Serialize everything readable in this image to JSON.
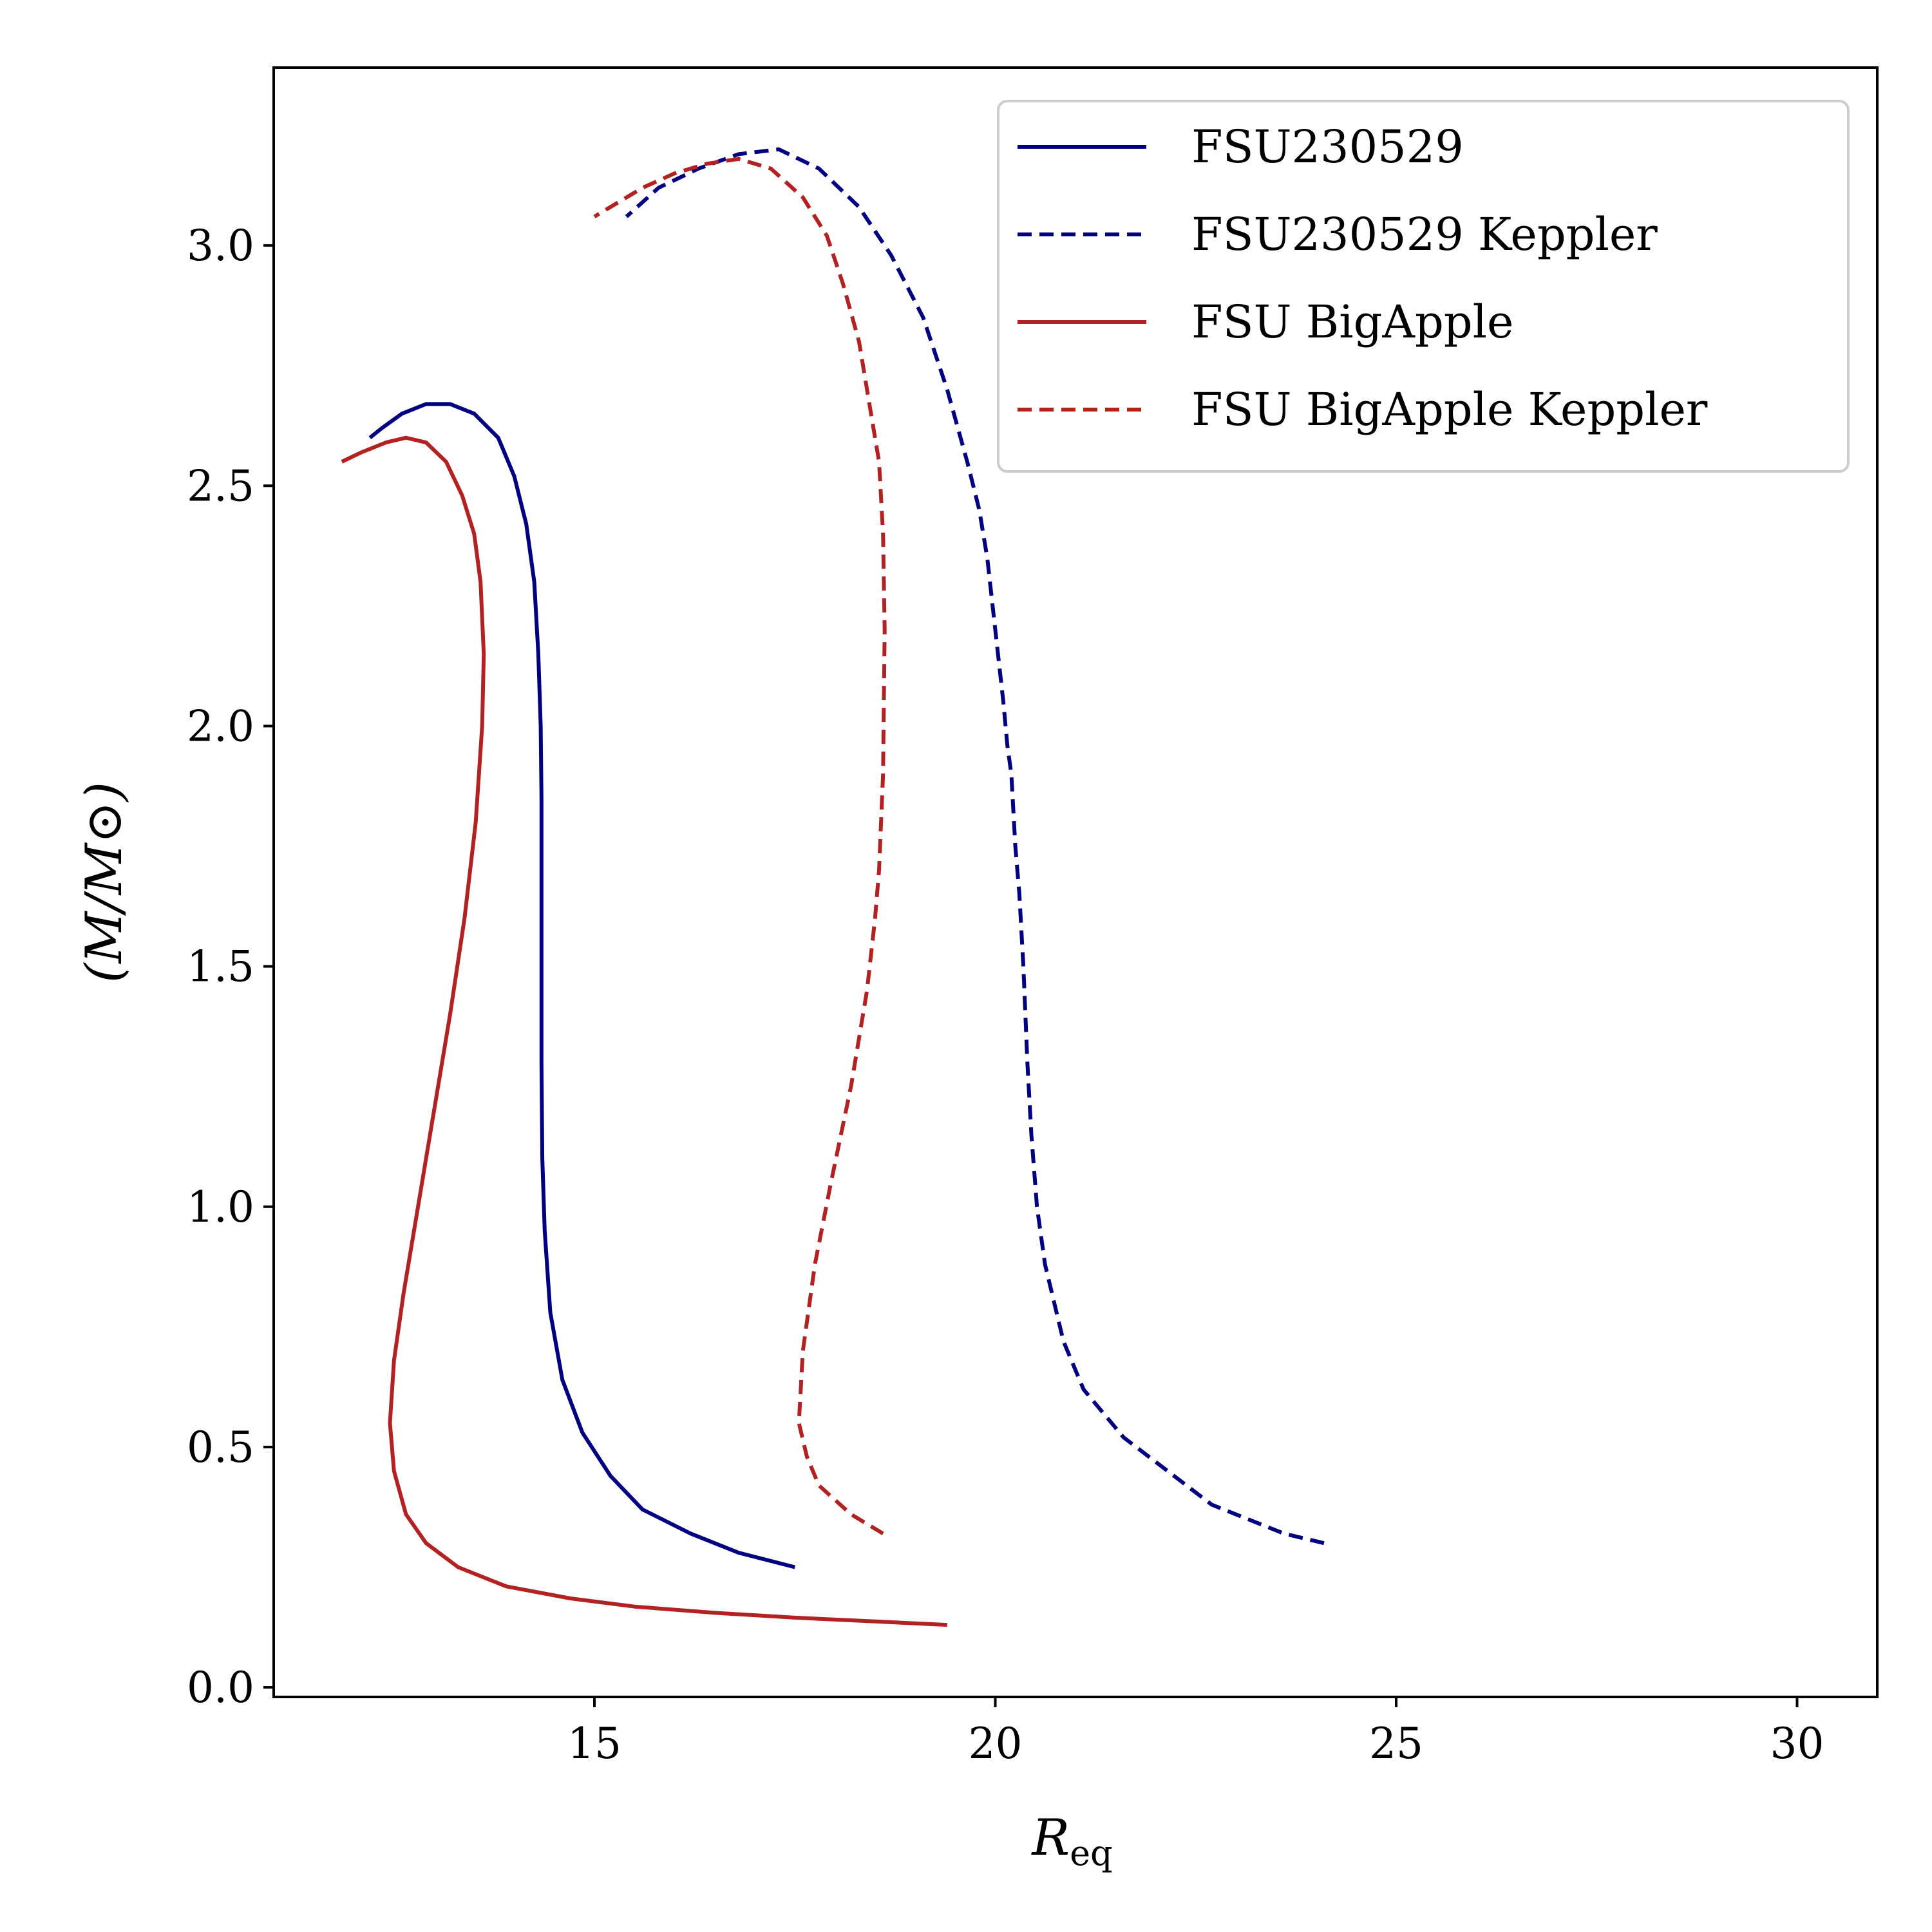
{
  "chart_data": {
    "type": "line",
    "xlabel": "R_eq",
    "xlabel_main": "R",
    "xlabel_sub": "eq",
    "ylabel": "(M/M_⊙)",
    "ylabel_text": "(M/M⊙)",
    "xlim": [
      11.0,
      31.0
    ],
    "ylim": [
      -0.02,
      3.37
    ],
    "xticks": [
      15,
      20,
      25,
      30
    ],
    "xtick_labels": [
      "15",
      "20",
      "25",
      "30"
    ],
    "yticks": [
      0.0,
      0.5,
      1.0,
      1.5,
      2.0,
      2.5,
      3.0
    ],
    "ytick_labels": [
      "0.0",
      "0.5",
      "1.0",
      "1.5",
      "2.0",
      "2.5",
      "3.0"
    ],
    "grid": false,
    "legend_position": "top-right",
    "series": [
      {
        "name": "FSU230529",
        "color": "#000080",
        "style": "solid",
        "x": [
          17.5,
          16.8,
          16.2,
          15.6,
          15.2,
          14.85,
          14.6,
          14.45,
          14.38,
          14.35,
          14.34,
          14.34,
          14.34,
          14.34,
          14.33,
          14.3,
          14.25,
          14.15,
          14.0,
          13.8,
          13.5,
          13.2,
          12.9,
          12.6,
          12.35,
          12.2
        ],
        "y": [
          0.25,
          0.28,
          0.32,
          0.37,
          0.44,
          0.53,
          0.64,
          0.78,
          0.95,
          1.1,
          1.3,
          1.5,
          1.7,
          1.85,
          2.0,
          2.15,
          2.3,
          2.42,
          2.52,
          2.6,
          2.65,
          2.67,
          2.67,
          2.65,
          2.62,
          2.6
        ]
      },
      {
        "name": "FSU230529 Keppler",
        "color": "#000080",
        "style": "dashed",
        "x": [
          24.1,
          23.6,
          22.7,
          21.6,
          21.1,
          20.85,
          20.62,
          20.52,
          20.45,
          20.4,
          20.35,
          20.3,
          20.25,
          20.2,
          20.15,
          20.1,
          20.0,
          19.9,
          19.8,
          19.65,
          19.4,
          19.1,
          18.7,
          18.3,
          17.8,
          17.3,
          16.8,
          16.3,
          15.8,
          15.4
        ],
        "y": [
          0.3,
          0.32,
          0.38,
          0.52,
          0.62,
          0.72,
          0.88,
          1.0,
          1.15,
          1.3,
          1.5,
          1.65,
          1.75,
          1.9,
          1.96,
          2.05,
          2.2,
          2.35,
          2.45,
          2.55,
          2.7,
          2.85,
          2.98,
          3.08,
          3.16,
          3.2,
          3.19,
          3.16,
          3.12,
          3.06
        ]
      },
      {
        "name": "FSU BigApple",
        "color": "#b22222",
        "style": "solid",
        "x": [
          19.4,
          18.5,
          17.5,
          16.5,
          15.5,
          14.7,
          13.9,
          13.3,
          12.9,
          12.65,
          12.5,
          12.45,
          12.5,
          12.62,
          12.8,
          13.0,
          13.2,
          13.38,
          13.52,
          13.6,
          13.62,
          13.58,
          13.5,
          13.35,
          13.15,
          12.9,
          12.65,
          12.4,
          12.1,
          11.85
        ],
        "y": [
          0.13,
          0.137,
          0.145,
          0.155,
          0.168,
          0.185,
          0.21,
          0.25,
          0.3,
          0.36,
          0.45,
          0.55,
          0.68,
          0.82,
          1.0,
          1.2,
          1.4,
          1.6,
          1.8,
          2.0,
          2.15,
          2.3,
          2.4,
          2.48,
          2.55,
          2.59,
          2.6,
          2.59,
          2.57,
          2.55
        ]
      },
      {
        "name": "FSU BigApple Keppler",
        "color": "#b22222",
        "style": "dashed",
        "x": [
          18.6,
          18.2,
          17.8,
          17.65,
          17.55,
          17.6,
          17.75,
          17.95,
          18.2,
          18.4,
          18.5,
          18.55,
          18.6,
          18.62,
          18.6,
          18.55,
          18.45,
          18.3,
          18.1,
          17.9,
          17.6,
          17.2,
          16.8,
          16.4,
          16.0,
          15.6,
          15.0
        ],
        "y": [
          0.32,
          0.36,
          0.42,
          0.48,
          0.55,
          0.7,
          0.88,
          1.05,
          1.25,
          1.45,
          1.6,
          1.7,
          1.9,
          2.2,
          2.4,
          2.55,
          2.65,
          2.8,
          2.92,
          3.02,
          3.1,
          3.16,
          3.18,
          3.17,
          3.15,
          3.12,
          3.06
        ]
      }
    ]
  }
}
